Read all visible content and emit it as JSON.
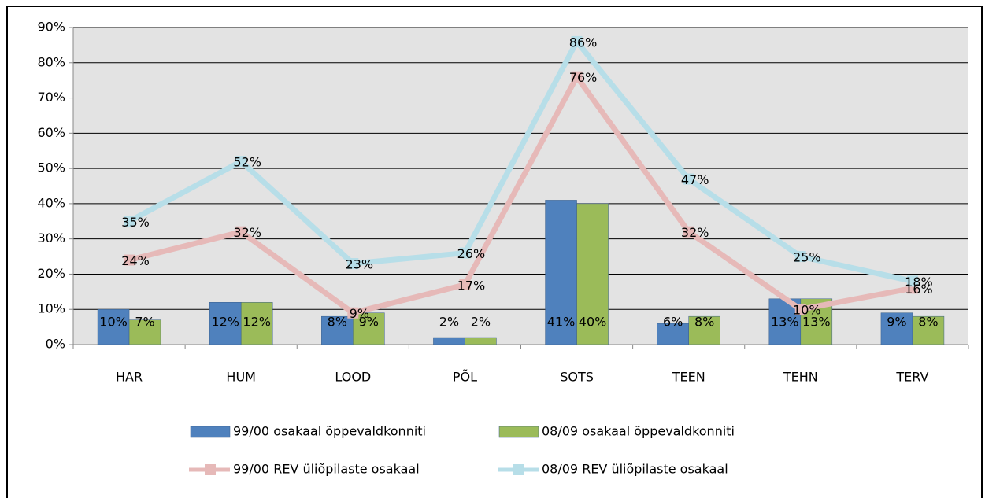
{
  "chart_data": {
    "type": "bar",
    "categories": [
      "HAR",
      "HUM",
      "LOOD",
      "PÕL",
      "SOTS",
      "TEEN",
      "TEHN",
      "TERV"
    ],
    "ylim": [
      0,
      90
    ],
    "yticks": [
      {
        "value": 0,
        "label": "0%"
      },
      {
        "value": 10,
        "label": "10%"
      },
      {
        "value": 20,
        "label": "20%"
      },
      {
        "value": 30,
        "label": "30%"
      },
      {
        "value": 40,
        "label": "40%"
      },
      {
        "value": 50,
        "label": "50%"
      },
      {
        "value": 60,
        "label": "60%"
      },
      {
        "value": 70,
        "label": "70%"
      },
      {
        "value": 80,
        "label": "80%"
      },
      {
        "value": 90,
        "label": "90%"
      }
    ],
    "grid": true,
    "series": [
      {
        "name": "99/00 osakaal õppevaldkonniti",
        "type": "bar",
        "color": "#4f81bd",
        "values": [
          10,
          12,
          8,
          2,
          41,
          6,
          13,
          9
        ],
        "value_labels": [
          "10%",
          "12%",
          "8%",
          "2%",
          "41%",
          "6%",
          "13%",
          "9%"
        ]
      },
      {
        "name": "08/09 osakaal õppevaldkonniti",
        "type": "bar",
        "color": "#9bbb59",
        "values": [
          7,
          12,
          9,
          2,
          40,
          8,
          13,
          8
        ],
        "value_labels": [
          "7%",
          "12%",
          "9%",
          "2%",
          "40%",
          "8%",
          "13%",
          "8%"
        ]
      },
      {
        "name": "99/00 REV üliõpilaste osakaal",
        "type": "line",
        "color": "#e6b9b8",
        "values": [
          24,
          32,
          9,
          17,
          76,
          32,
          10,
          16
        ],
        "value_labels": [
          "24%",
          "32%",
          "9%",
          "17%",
          "76%",
          "32%",
          "10%",
          "16%"
        ]
      },
      {
        "name": "08/09 REV üliõpilaste osakaal",
        "type": "line",
        "color": "#b7dee8",
        "values": [
          35,
          52,
          23,
          26,
          86,
          47,
          25,
          18
        ],
        "value_labels": [
          "35%",
          "52%",
          "23%",
          "26%",
          "86%",
          "47%",
          "25%",
          "18%"
        ]
      }
    ]
  }
}
